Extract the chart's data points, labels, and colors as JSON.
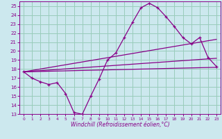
{
  "xlabel": "Windchill (Refroidissement éolien,°C)",
  "bg_color": "#cce8ee",
  "grid_color": "#99ccbb",
  "line_color": "#880088",
  "xlim": [
    -0.5,
    23.5
  ],
  "ylim": [
    13,
    25.5
  ],
  "yticks": [
    13,
    14,
    15,
    16,
    17,
    18,
    19,
    20,
    21,
    22,
    23,
    24,
    25
  ],
  "xticks": [
    0,
    1,
    2,
    3,
    4,
    5,
    6,
    7,
    8,
    9,
    10,
    11,
    12,
    13,
    14,
    15,
    16,
    17,
    18,
    19,
    20,
    21,
    22,
    23
  ],
  "curve_x": [
    0,
    1,
    2,
    3,
    4,
    5,
    6,
    7,
    8,
    9,
    10,
    11,
    12,
    13,
    14,
    15,
    16,
    17,
    18,
    19,
    20,
    21,
    22,
    23
  ],
  "curve_y": [
    17.7,
    17.0,
    16.6,
    16.3,
    16.5,
    15.3,
    13.2,
    13.0,
    15.0,
    16.9,
    19.0,
    19.8,
    21.5,
    23.2,
    24.8,
    25.3,
    24.8,
    23.8,
    22.7,
    21.5,
    20.8,
    21.5,
    19.3,
    18.3
  ],
  "line1_x": [
    0,
    23
  ],
  "line1_y": [
    17.7,
    18.2
  ],
  "line2_x": [
    0,
    23
  ],
  "line2_y": [
    17.7,
    19.2
  ],
  "line3_x": [
    0,
    23
  ],
  "line3_y": [
    17.7,
    21.3
  ],
  "tick_fontsize": 5.0,
  "xlabel_fontsize": 5.5
}
